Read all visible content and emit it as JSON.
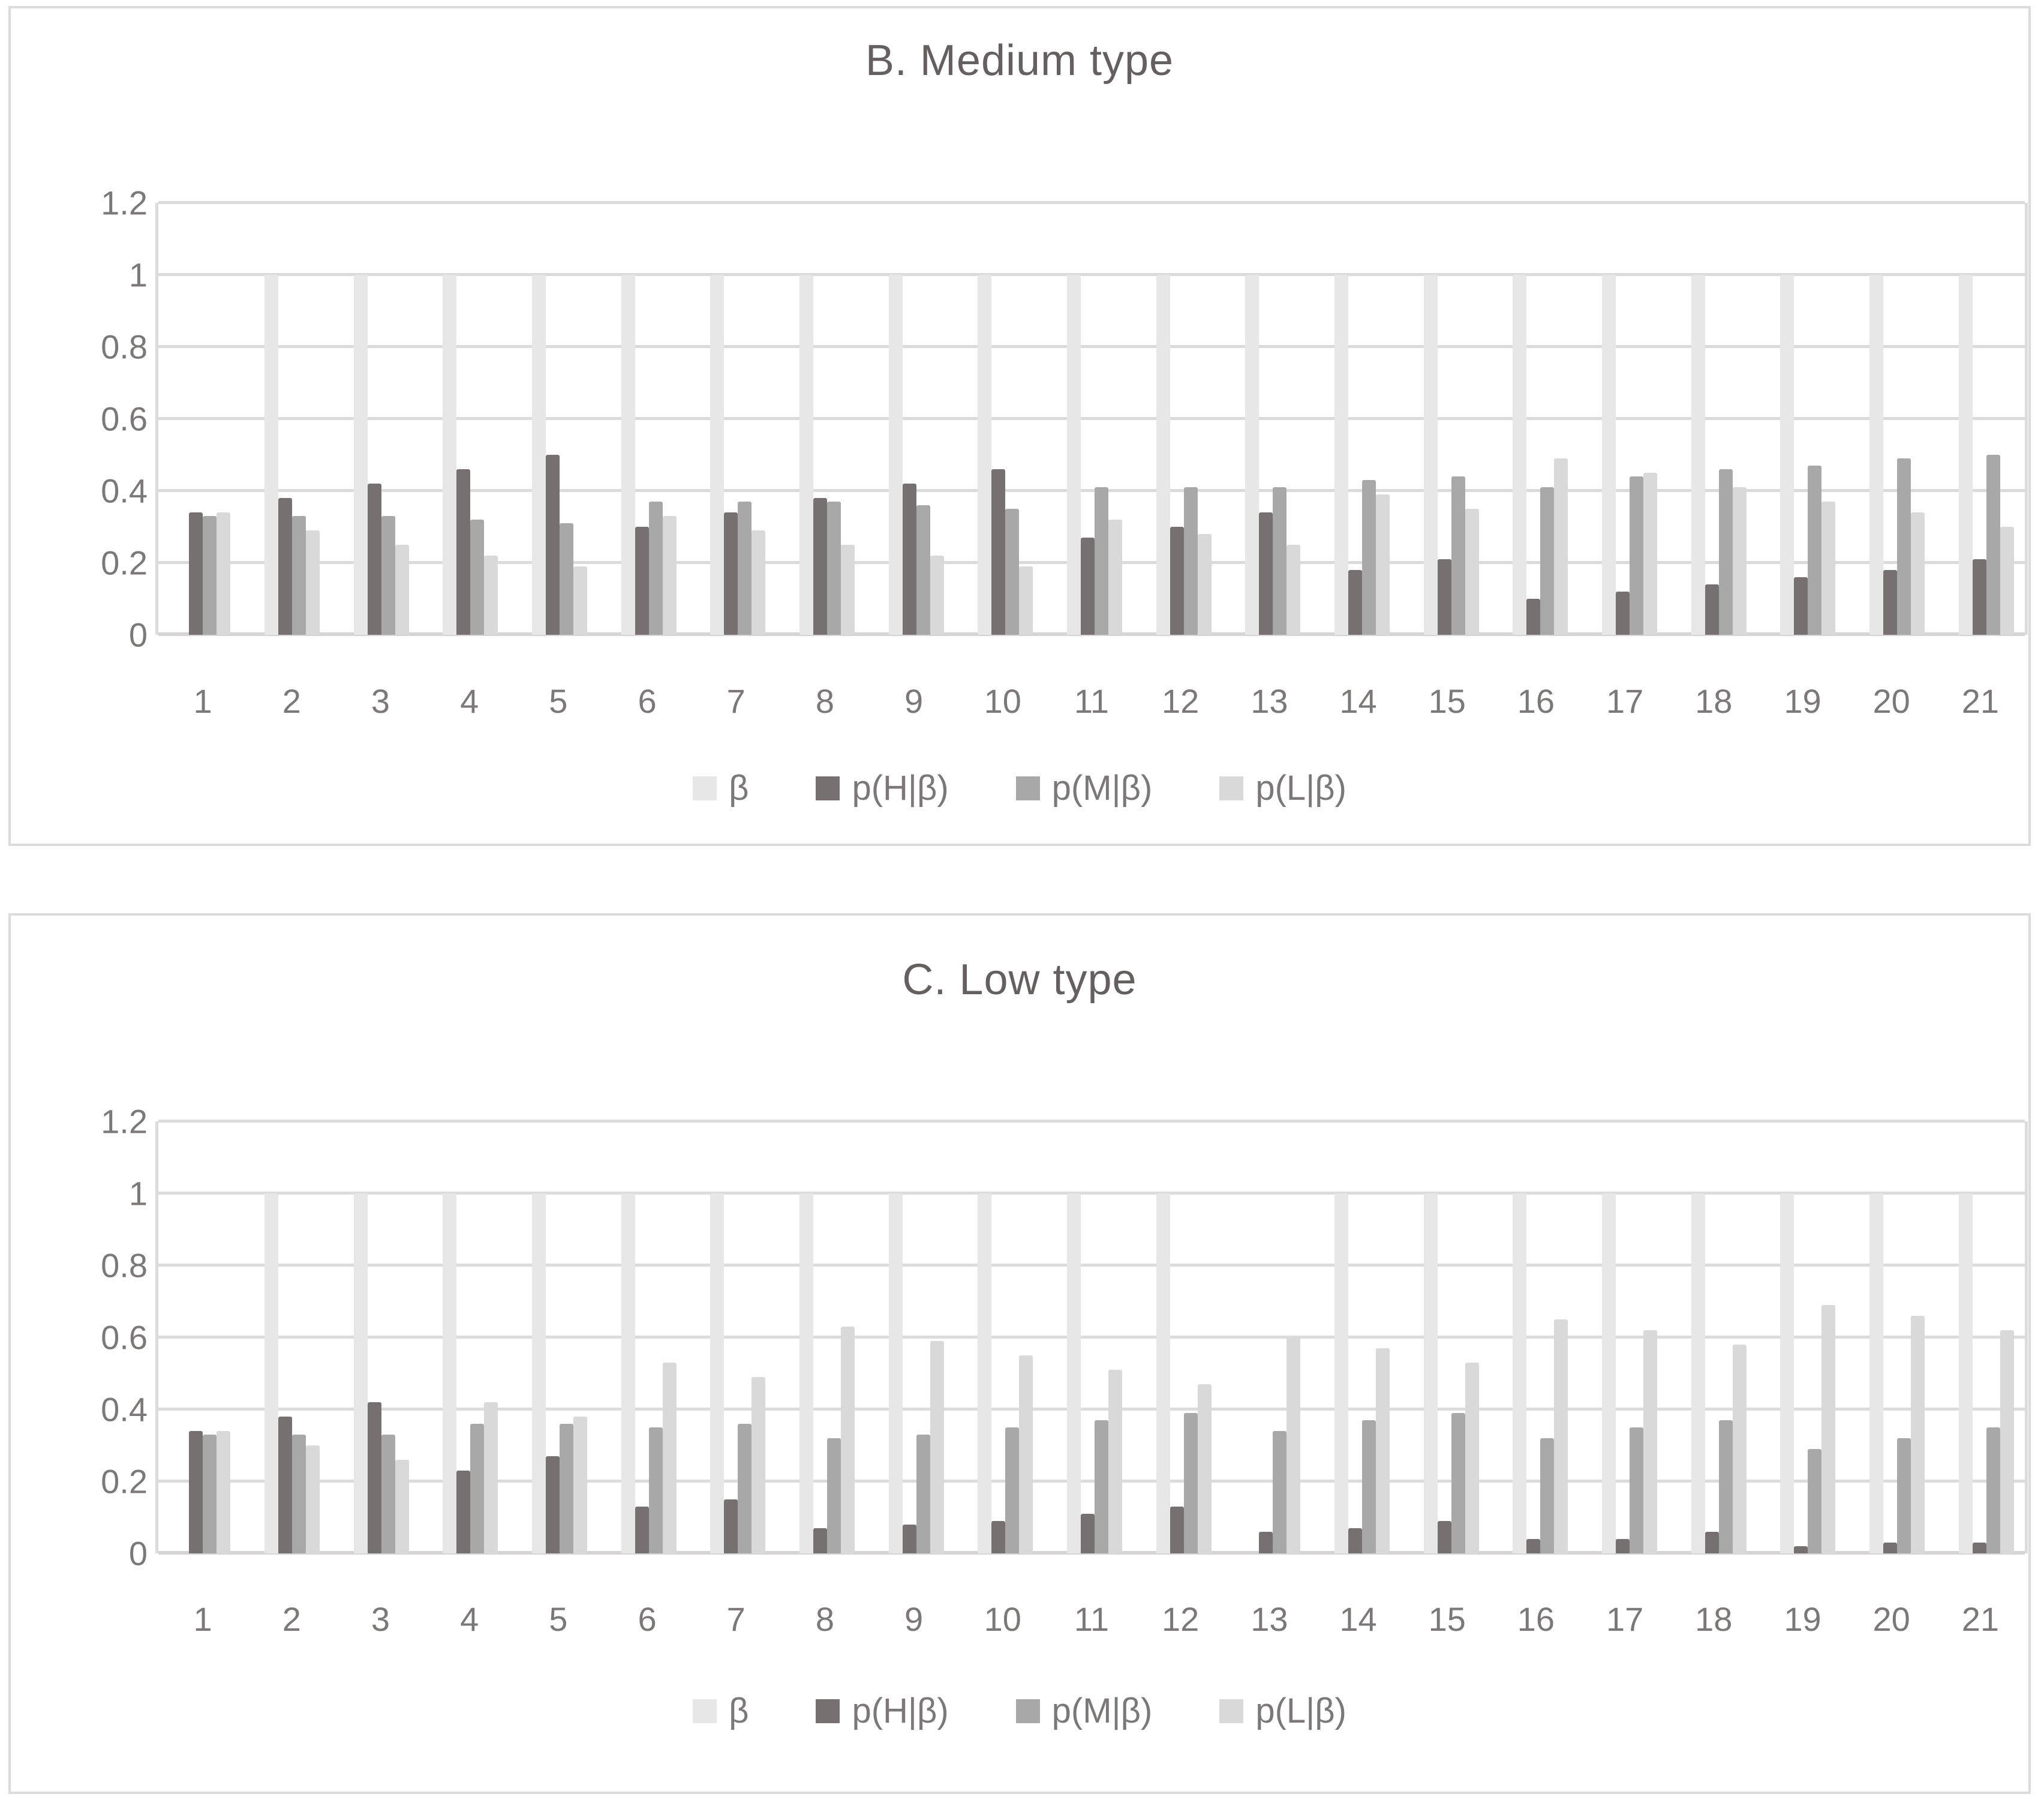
{
  "colors": {
    "background": "#ffffff",
    "panel_border": "#dcdcdc",
    "gridline": "#dcdcdc",
    "zero_line": "#d6d4d4",
    "title_text": "#665f5f",
    "axis_text": "#7d7878",
    "legend_text": "#7d7878"
  },
  "chart_data": [
    {
      "type": "bar",
      "title": "B. Medium type",
      "xlabel": "",
      "ylabel": "",
      "ylim": [
        0,
        1.2
      ],
      "y_ticks": [
        0,
        0.2,
        0.4,
        0.6,
        0.8,
        1,
        1.2
      ],
      "grid": "horizontal",
      "legend_position": "bottom",
      "categories": [
        "1",
        "2",
        "3",
        "4",
        "5",
        "6",
        "7",
        "8",
        "9",
        "10",
        "11",
        "12",
        "13",
        "14",
        "15",
        "16",
        "17",
        "18",
        "19",
        "20",
        "21"
      ],
      "series": [
        {
          "name": "β",
          "color": "#e8e7e7",
          "values": [
            null,
            1,
            1,
            1,
            1,
            1,
            1,
            1,
            1,
            1,
            1,
            1,
            1,
            1,
            1,
            1,
            1,
            1,
            1,
            1,
            1
          ]
        },
        {
          "name": "p(H|β)",
          "color": "#767070",
          "values": [
            0.34,
            0.38,
            0.42,
            0.46,
            0.5,
            0.3,
            0.34,
            0.38,
            0.42,
            0.46,
            0.27,
            0.3,
            0.34,
            0.18,
            0.21,
            0.1,
            0.12,
            0.14,
            0.16,
            0.18,
            0.21
          ]
        },
        {
          "name": "p(M|β)",
          "color": "#a8a8a8",
          "values": [
            0.33,
            0.33,
            0.33,
            0.32,
            0.31,
            0.37,
            0.37,
            0.37,
            0.36,
            0.35,
            0.41,
            0.41,
            0.41,
            0.43,
            0.44,
            0.41,
            0.44,
            0.46,
            0.47,
            0.49,
            0.5
          ]
        },
        {
          "name": "p(L|β)",
          "color": "#d9d9d9",
          "values": [
            0.34,
            0.29,
            0.25,
            0.22,
            0.19,
            0.33,
            0.29,
            0.25,
            0.22,
            0.19,
            0.32,
            0.28,
            0.25,
            0.39,
            0.35,
            0.49,
            0.45,
            0.41,
            0.37,
            0.34,
            0.3
          ]
        }
      ]
    },
    {
      "type": "bar",
      "title": "C. Low type",
      "xlabel": "",
      "ylabel": "",
      "ylim": [
        0,
        1.2
      ],
      "y_ticks": [
        0,
        0.2,
        0.4,
        0.6,
        0.8,
        1,
        1.2
      ],
      "grid": "horizontal",
      "legend_position": "bottom",
      "categories": [
        "1",
        "2",
        "3",
        "4",
        "5",
        "6",
        "7",
        "8",
        "9",
        "10",
        "11",
        "12",
        "13",
        "14",
        "15",
        "16",
        "17",
        "18",
        "19",
        "20",
        "21"
      ],
      "series": [
        {
          "name": "β",
          "color": "#e8e7e7",
          "values": [
            null,
            1,
            1,
            1,
            1,
            1,
            1,
            1,
            1,
            1,
            1,
            1,
            null,
            1,
            1,
            1,
            1,
            1,
            1,
            1,
            1
          ]
        },
        {
          "name": "p(H|β)",
          "color": "#767070",
          "values": [
            0.34,
            0.38,
            0.42,
            0.23,
            0.27,
            0.13,
            0.15,
            0.07,
            0.08,
            0.09,
            0.11,
            0.13,
            0.06,
            0.07,
            0.09,
            0.04,
            0.04,
            0.06,
            0.02,
            0.03,
            0.03
          ]
        },
        {
          "name": "p(M|β)",
          "color": "#a8a8a8",
          "values": [
            0.33,
            0.33,
            0.33,
            0.36,
            0.36,
            0.35,
            0.36,
            0.32,
            0.33,
            0.35,
            0.37,
            0.39,
            0.34,
            0.37,
            0.39,
            0.32,
            0.35,
            0.37,
            0.29,
            0.32,
            0.35
          ]
        },
        {
          "name": "p(L|β)",
          "color": "#d9d9d9",
          "values": [
            0.34,
            0.3,
            0.26,
            0.42,
            0.38,
            0.53,
            0.49,
            0.63,
            0.59,
            0.55,
            0.51,
            0.47,
            0.6,
            0.57,
            0.53,
            0.65,
            0.62,
            0.58,
            0.69,
            0.66,
            0.62
          ]
        }
      ]
    }
  ]
}
